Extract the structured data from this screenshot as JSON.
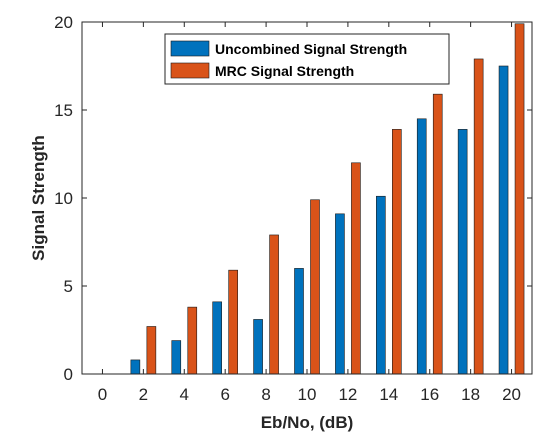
{
  "chart_data": {
    "type": "bar",
    "title": "",
    "xlabel": "Eb/No, (dB)",
    "ylabel": "Signal Strength",
    "categories": [
      "0",
      "2",
      "4",
      "6",
      "8",
      "10",
      "12",
      "14",
      "16",
      "18",
      "20"
    ],
    "x_ticks": [
      "0",
      "2",
      "4",
      "6",
      "8",
      "10",
      "12",
      "14",
      "16",
      "18",
      "20"
    ],
    "y_ticks": [
      "0",
      "5",
      "10",
      "15",
      "20"
    ],
    "ylim": [
      0,
      20
    ],
    "grid": false,
    "legend_position": "top-right",
    "series": [
      {
        "name": "Uncombined Signal Strength",
        "color": "#0072BD",
        "values": [
          0,
          0.8,
          1.9,
          4.1,
          3.1,
          6.0,
          9.1,
          10.1,
          14.5,
          13.9,
          17.5
        ]
      },
      {
        "name": "MRC Signal Strength",
        "color": "#D95319",
        "values": [
          0,
          2.7,
          3.8,
          5.9,
          7.9,
          9.9,
          12.0,
          13.9,
          15.9,
          17.9,
          19.9
        ]
      }
    ]
  }
}
